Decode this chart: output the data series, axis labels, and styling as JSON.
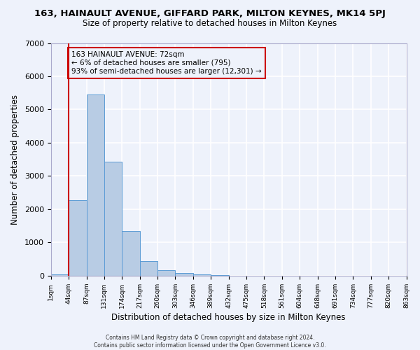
{
  "title": "163, HAINAULT AVENUE, GIFFARD PARK, MILTON KEYNES, MK14 5PJ",
  "subtitle": "Size of property relative to detached houses in Milton Keynes",
  "xlabel": "Distribution of detached houses by size in Milton Keynes",
  "ylabel": "Number of detached properties",
  "bin_labels": [
    "1sqm",
    "44sqm",
    "87sqm",
    "131sqm",
    "174sqm",
    "217sqm",
    "260sqm",
    "303sqm",
    "346sqm",
    "389sqm",
    "432sqm",
    "475sqm",
    "518sqm",
    "561sqm",
    "604sqm",
    "648sqm",
    "691sqm",
    "734sqm",
    "777sqm",
    "820sqm",
    "863sqm"
  ],
  "bar_values": [
    50,
    2280,
    5450,
    3430,
    1350,
    450,
    175,
    90,
    50,
    10,
    0,
    0,
    0,
    0,
    0,
    0,
    0,
    0,
    0,
    0
  ],
  "bar_color": "#b8cce4",
  "bar_edge_color": "#5b9bd5",
  "ylim": [
    0,
    7000
  ],
  "yticks": [
    0,
    1000,
    2000,
    3000,
    4000,
    5000,
    6000,
    7000
  ],
  "vline_x": 1,
  "vline_color": "#cc0000",
  "annotation_title": "163 HAINAULT AVENUE: 72sqm",
  "annotation_line1": "← 6% of detached houses are smaller (795)",
  "annotation_line2": "93% of semi-detached houses are larger (12,301) →",
  "annotation_box_color": "#cc0000",
  "footer1": "Contains HM Land Registry data © Crown copyright and database right 2024.",
  "footer2": "Contains public sector information licensed under the Open Government Licence v3.0.",
  "bg_color": "#eef2fb",
  "grid_color": "#ffffff",
  "title_fontsize": 9.5,
  "subtitle_fontsize": 8.5
}
